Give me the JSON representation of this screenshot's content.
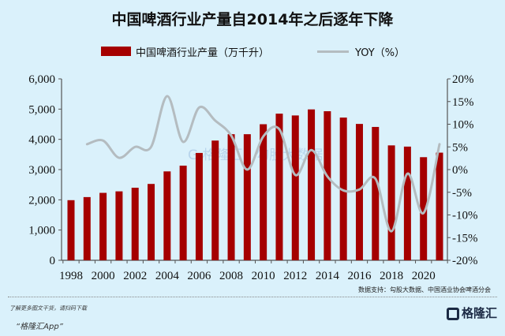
{
  "chart_data": {
    "type": "bar+line",
    "title": "中国啤酒行业产量自2014年之后逐年下降",
    "categories": [
      "1998",
      "1999",
      "2000",
      "2001",
      "2002",
      "2003",
      "2004",
      "2005",
      "2006",
      "2007",
      "2008",
      "2009",
      "2010",
      "2011",
      "2012",
      "2013",
      "2014",
      "2015",
      "2016",
      "2017",
      "2018",
      "2019",
      "2020",
      "2021"
    ],
    "series": [
      {
        "name": "中国啤酒行业产量（万千升）",
        "type": "bar",
        "axis": "left",
        "color": "#a50000",
        "values": [
          1988,
          2090,
          2230,
          2280,
          2400,
          2525,
          2940,
          3130,
          3550,
          3960,
          4170,
          4170,
          4500,
          4850,
          4790,
          4990,
          4930,
          4720,
          4510,
          4410,
          3800,
          3760,
          3410,
          3560
        ]
      },
      {
        "name": "YOY（%）",
        "type": "line",
        "axis": "right",
        "color": "#b4bcc0",
        "values": [
          null,
          5.6,
          6.4,
          2.6,
          5.0,
          5.0,
          16.2,
          6.1,
          13.7,
          10.8,
          7.5,
          0.0,
          7.3,
          8.9,
          -1.2,
          4.3,
          -1.5,
          -4.6,
          -4.4,
          -2.0,
          -13.6,
          -0.9,
          -9.6,
          5.6
        ]
      }
    ],
    "x_tick_labels": [
      "1998",
      "2000",
      "2002",
      "2004",
      "2006",
      "2008",
      "2010",
      "2012",
      "2014",
      "2016",
      "2018",
      "2020"
    ],
    "y_left": {
      "ylim": [
        0,
        6000
      ],
      "ticks": [
        "0",
        "1,000",
        "2,000",
        "3,000",
        "4,000",
        "5,000",
        "6,000"
      ]
    },
    "y_right": {
      "ylim": [
        -20,
        20
      ],
      "ticks": [
        "-20%",
        "-15%",
        "-10%",
        "-5%",
        "0%",
        "5%",
        "10%",
        "15%",
        "20%"
      ]
    },
    "legend_position": "top",
    "grid": false
  },
  "watermark": "格隆汇 勾股大数据",
  "source": "数据支持：勾股大数据、中国酒业协会啤酒分会",
  "footer": {
    "line1": "了解更多图文干货，请扫码下载",
    "line2": "“格隆汇App”",
    "logo": "格隆汇"
  }
}
